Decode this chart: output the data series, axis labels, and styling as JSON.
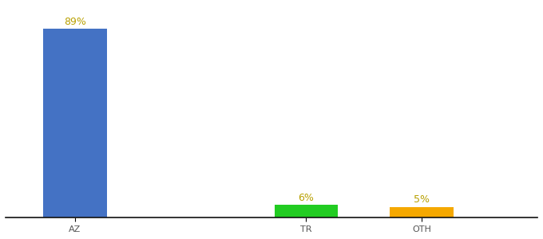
{
  "categories": [
    "AZ",
    "TR",
    "OTH"
  ],
  "values": [
    89,
    6,
    5
  ],
  "bar_colors": [
    "#4472c4",
    "#22cc22",
    "#f5a800"
  ],
  "labels": [
    "89%",
    "6%",
    "5%"
  ],
  "ylim": [
    0,
    100
  ],
  "background_color": "#ffffff",
  "label_color": "#b8a000",
  "label_fontsize": 9,
  "tick_fontsize": 8,
  "bar_width": 0.55,
  "xlim": [
    -0.5,
    4.5
  ]
}
